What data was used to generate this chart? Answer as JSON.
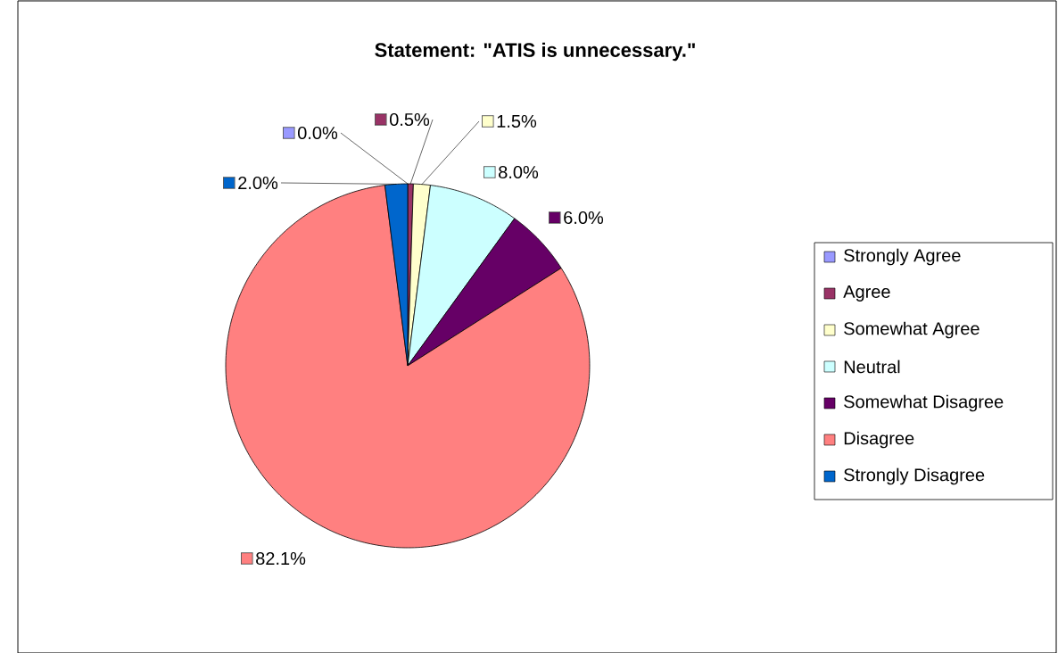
{
  "chart_data": {
    "type": "pie",
    "title": "Statement: \"ATIS  is unnecessary.\"",
    "categories": [
      "Strongly Agree",
      "Agree",
      "Somewhat Agree",
      "Neutral",
      "Somewhat Disagree",
      "Disagree",
      "Strongly Disagree"
    ],
    "values": [
      0.0,
      0.5,
      1.5,
      8.0,
      6.0,
      82.1,
      2.0
    ],
    "value_labels": [
      "0.0%",
      "0.5%",
      "1.5%",
      "8.0%",
      "6.0%",
      "82.1%",
      "2.0%"
    ],
    "colors": [
      "#9999ff",
      "#993366",
      "#ffffcc",
      "#ccffff",
      "#660066",
      "#ff8080",
      "#0066cc"
    ],
    "legend": "right"
  }
}
